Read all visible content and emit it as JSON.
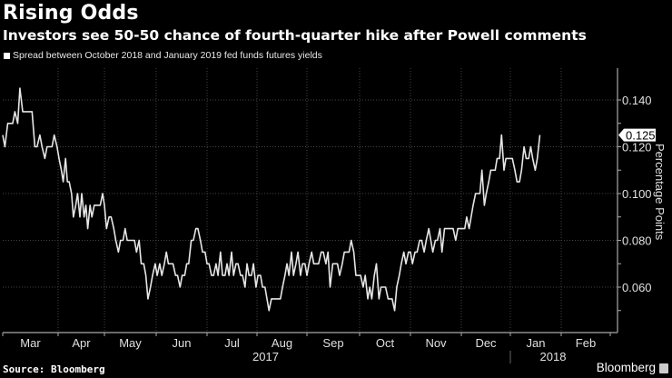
{
  "header": {
    "title": "Rising Odds",
    "subtitle": "Investors see 50-50 chance of fourth-quarter hike after Powell comments"
  },
  "footer": {
    "source": "Source: Bloomberg",
    "brand": "Bloomberg"
  },
  "chart_data": {
    "type": "line",
    "title": "Rising Odds",
    "subtitle": "Investors see 50-50 chance of fourth-quarter hike after Powell comments",
    "xlabel": "",
    "ylabel": "Percentage Points",
    "legend": [
      {
        "name": "Spread between October 2018 and January 2019 fed funds futures yields",
        "position": "top-left"
      }
    ],
    "x_tick_labels": [
      "Mar",
      "Apr",
      "May",
      "Jun",
      "Jul",
      "Aug",
      "Sep",
      "Oct",
      "Nov",
      "Dec",
      "Jan",
      "Feb"
    ],
    "x_year_labels": [
      {
        "label": "2017",
        "months": [
          "Mar",
          "Apr",
          "May",
          "Jun",
          "Jul",
          "Aug",
          "Sep",
          "Oct",
          "Nov",
          "Dec"
        ]
      },
      {
        "label": "2018",
        "months": [
          "Jan",
          "Feb"
        ]
      }
    ],
    "y_ticks": [
      0.06,
      0.08,
      0.1,
      0.12,
      0.14
    ],
    "y_tick_labels": [
      "0.060",
      "0.080",
      "0.100",
      "0.120",
      "0.140"
    ],
    "ylim": [
      0.045,
      0.15
    ],
    "xlim_months": [
      0,
      12.2
    ],
    "grid": true,
    "last_value_label": "0.125",
    "last_value": 0.125,
    "series": [
      {
        "name": "Spread between October 2018 and January 2019 fed funds futures yields",
        "x_months": [
          0.0,
          0.04,
          0.09,
          0.13,
          0.18,
          0.22,
          0.27,
          0.31,
          0.36,
          0.4,
          0.45,
          0.49,
          0.53,
          0.58,
          0.62,
          0.67,
          0.71,
          0.76,
          0.8,
          0.84,
          0.89,
          0.93,
          0.98,
          1.02,
          1.07,
          1.11,
          1.16,
          1.2,
          1.24,
          1.29,
          1.33,
          1.38,
          1.42,
          1.47,
          1.51,
          1.56,
          1.6,
          1.64,
          1.69,
          1.73,
          1.78,
          1.82,
          1.87,
          1.91,
          1.96,
          2.0,
          2.04,
          2.09,
          2.13,
          2.18,
          2.22,
          2.27,
          2.31,
          2.36,
          2.4,
          2.44,
          2.49,
          2.53,
          2.58,
          2.62,
          2.67,
          2.71,
          2.76,
          2.8,
          2.84,
          2.89,
          2.93,
          2.98,
          3.02,
          3.07,
          3.11,
          3.16,
          3.2,
          3.24,
          3.29,
          3.33,
          3.38,
          3.42,
          3.47,
          3.51,
          3.56,
          3.6,
          3.64,
          3.69,
          3.73,
          3.78,
          3.82,
          3.87,
          3.91,
          3.96,
          4.0,
          4.04,
          4.09,
          4.13,
          4.18,
          4.22,
          4.27,
          4.31,
          4.36,
          4.4,
          4.44,
          4.49,
          4.53,
          4.58,
          4.62,
          4.67,
          4.71,
          4.76,
          4.8,
          4.84,
          4.89,
          4.93,
          4.98,
          5.02,
          5.07,
          5.11,
          5.16,
          5.2,
          5.24,
          5.29,
          5.33,
          5.38,
          5.42,
          5.47,
          5.51,
          5.56,
          5.6,
          5.64,
          5.69,
          5.73,
          5.78,
          5.82,
          5.87,
          5.91,
          5.96,
          6.0,
          6.04,
          6.09,
          6.13,
          6.18,
          6.22,
          6.27,
          6.31,
          6.36,
          6.4,
          6.44,
          6.49,
          6.53,
          6.58,
          6.62,
          6.67,
          6.71,
          6.76,
          6.8,
          6.84,
          6.89,
          6.93,
          6.98,
          7.02,
          7.07,
          7.11,
          7.16,
          7.2,
          7.24,
          7.29,
          7.33,
          7.38,
          7.42,
          7.47,
          7.51,
          7.56,
          7.6,
          7.64,
          7.69,
          7.73,
          7.78,
          7.82,
          7.87,
          7.91,
          7.96,
          8.0,
          8.04,
          8.09,
          8.13,
          8.18,
          8.22,
          8.27,
          8.31,
          8.36,
          8.4,
          8.44,
          8.49,
          8.53,
          8.58,
          8.62,
          8.67,
          8.71,
          8.76,
          8.8,
          8.84,
          8.89,
          8.93,
          8.98,
          9.02,
          9.07,
          9.11,
          9.16,
          9.2,
          9.24,
          9.29,
          9.33,
          9.38,
          9.42,
          9.47,
          9.51,
          9.56,
          9.6,
          9.64,
          9.69,
          9.73,
          9.78,
          9.82,
          9.87,
          9.91,
          9.96,
          10.0,
          10.04,
          10.09,
          10.13,
          10.18,
          10.22,
          10.27,
          10.31,
          10.36,
          10.4,
          10.44,
          10.49,
          10.53,
          10.58,
          10.62,
          10.67,
          10.71,
          10.76,
          10.8,
          10.84,
          10.89,
          10.93,
          10.98,
          11.02,
          11.07,
          11.11,
          11.16,
          11.2,
          11.24,
          11.29,
          11.33,
          11.38,
          11.42,
          11.47,
          11.51,
          11.56,
          11.6,
          11.64,
          11.69,
          11.73,
          11.78,
          11.82,
          11.87,
          11.91
        ],
        "values": [
          0.125,
          0.12,
          0.13,
          0.13,
          0.13,
          0.135,
          0.13,
          0.145,
          0.135,
          0.135,
          0.135,
          0.135,
          0.135,
          0.12,
          0.12,
          0.125,
          0.12,
          0.115,
          0.12,
          0.12,
          0.12,
          0.125,
          0.12,
          0.115,
          0.11,
          0.105,
          0.115,
          0.105,
          0.105,
          0.1,
          0.09,
          0.095,
          0.1,
          0.09,
          0.1,
          0.09,
          0.095,
          0.085,
          0.095,
          0.09,
          0.095,
          0.095,
          0.095,
          0.095,
          0.1,
          0.095,
          0.085,
          0.09,
          0.09,
          0.085,
          0.08,
          0.075,
          0.08,
          0.08,
          0.085,
          0.08,
          0.08,
          0.08,
          0.08,
          0.075,
          0.08,
          0.07,
          0.07,
          0.065,
          0.055,
          0.06,
          0.065,
          0.07,
          0.065,
          0.07,
          0.065,
          0.07,
          0.075,
          0.07,
          0.07,
          0.07,
          0.065,
          0.065,
          0.06,
          0.065,
          0.065,
          0.07,
          0.07,
          0.08,
          0.08,
          0.085,
          0.085,
          0.08,
          0.075,
          0.075,
          0.07,
          0.07,
          0.065,
          0.065,
          0.07,
          0.065,
          0.075,
          0.065,
          0.065,
          0.07,
          0.065,
          0.075,
          0.065,
          0.07,
          0.07,
          0.065,
          0.065,
          0.06,
          0.07,
          0.065,
          0.065,
          0.07,
          0.06,
          0.065,
          0.065,
          0.06,
          0.06,
          0.055,
          0.05,
          0.055,
          0.055,
          0.055,
          0.055,
          0.055,
          0.06,
          0.065,
          0.07,
          0.065,
          0.075,
          0.065,
          0.07,
          0.075,
          0.065,
          0.07,
          0.07,
          0.065,
          0.07,
          0.075,
          0.07,
          0.07,
          0.07,
          0.075,
          0.075,
          0.07,
          0.075,
          0.06,
          0.07,
          0.07,
          0.07,
          0.065,
          0.07,
          0.075,
          0.075,
          0.075,
          0.08,
          0.075,
          0.065,
          0.065,
          0.065,
          0.06,
          0.065,
          0.055,
          0.06,
          0.055,
          0.065,
          0.07,
          0.055,
          0.06,
          0.06,
          0.06,
          0.055,
          0.055,
          0.055,
          0.05,
          0.06,
          0.065,
          0.07,
          0.075,
          0.07,
          0.075,
          0.075,
          0.07,
          0.075,
          0.075,
          0.08,
          0.08,
          0.075,
          0.08,
          0.085,
          0.08,
          0.075,
          0.08,
          0.08,
          0.085,
          0.075,
          0.085,
          0.085,
          0.085,
          0.085,
          0.085,
          0.08,
          0.085,
          0.085,
          0.085,
          0.085,
          0.09,
          0.085,
          0.09,
          0.095,
          0.1,
          0.1,
          0.1,
          0.11,
          0.095,
          0.1,
          0.105,
          0.11,
          0.11,
          0.11,
          0.115,
          0.115,
          0.125,
          0.11,
          0.115,
          0.115,
          0.115,
          0.115,
          0.11,
          0.105,
          0.105,
          0.11,
          0.12,
          0.115,
          0.115,
          0.12,
          0.115,
          0.11,
          0.115,
          0.125
        ]
      }
    ]
  }
}
